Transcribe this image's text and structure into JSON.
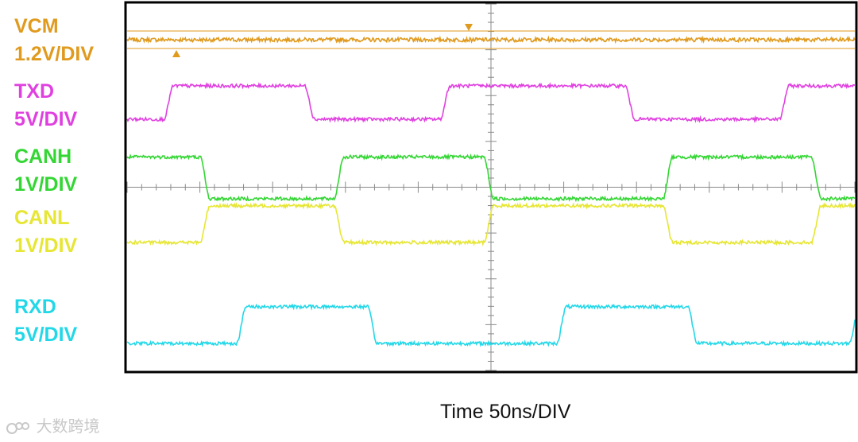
{
  "chart_data": {
    "type": "line",
    "title": "",
    "xlabel": "Time 50ns/DIV",
    "ylabel": "",
    "grid": true,
    "x_divisions": 10,
    "y_divisions": 8,
    "time_per_div_ns": 50,
    "duration_ns": 500,
    "series": [
      {
        "name": "VCM",
        "scale": "1.2V/DIV",
        "color": "#e09a1e",
        "levels_div": {
          "low": 0.0,
          "high": 0.0
        },
        "noise_div": 0.06,
        "edges": []
      },
      {
        "name": "TXD",
        "scale": "5V/DIV",
        "color": "#e040e0",
        "levels_div": {
          "low": 0.0,
          "high": 1.0
        },
        "edges": [
          {
            "t": 0,
            "to": "low"
          },
          {
            "t": 25,
            "to": "high"
          },
          {
            "t": 122,
            "to": "low"
          },
          {
            "t": 215,
            "to": "high"
          },
          {
            "t": 342,
            "to": "low"
          },
          {
            "t": 448,
            "to": "high"
          }
        ]
      },
      {
        "name": "CANH",
        "scale": "1V/DIV",
        "color": "#33d633",
        "levels_div": {
          "low": 0.0,
          "high": 1.25
        },
        "edges": [
          {
            "t": 0,
            "to": "high"
          },
          {
            "t": 50,
            "to": "low"
          },
          {
            "t": 142,
            "to": "high"
          },
          {
            "t": 245,
            "to": "low"
          },
          {
            "t": 368,
            "to": "high"
          },
          {
            "t": 470,
            "to": "low"
          }
        ]
      },
      {
        "name": "CANL",
        "scale": "1V/DIV",
        "color": "#e6e633",
        "levels_div": {
          "low": 0.0,
          "high": 1.1
        },
        "edges": [
          {
            "t": 0,
            "to": "low"
          },
          {
            "t": 50,
            "to": "high"
          },
          {
            "t": 142,
            "to": "low"
          },
          {
            "t": 245,
            "to": "high"
          },
          {
            "t": 368,
            "to": "low"
          },
          {
            "t": 470,
            "to": "high"
          }
        ]
      },
      {
        "name": "RXD",
        "scale": "5V/DIV",
        "color": "#22d8e8",
        "levels_div": {
          "low": 0.0,
          "high": 1.1
        },
        "edges": [
          {
            "t": 0,
            "to": "low"
          },
          {
            "t": 75,
            "to": "high"
          },
          {
            "t": 165,
            "to": "low"
          },
          {
            "t": 295,
            "to": "high"
          },
          {
            "t": 385,
            "to": "low"
          },
          {
            "t": 496,
            "to": "high"
          }
        ]
      }
    ]
  },
  "labels": {
    "vcm": {
      "name": "VCM",
      "scale": "1.2V/DIV",
      "color": "#e09a1e"
    },
    "txd": {
      "name": "TXD",
      "scale": "5V/DIV",
      "color": "#e040e0"
    },
    "canh": {
      "name": "CANH",
      "scale": "1V/DIV",
      "color": "#33d633"
    },
    "canl": {
      "name": "CANL",
      "scale": "1V/DIV",
      "color": "#e6e633"
    },
    "rxd": {
      "name": "RXD",
      "scale": "5V/DIV",
      "color": "#22d8e8"
    }
  },
  "timebase": "Time 50ns/DIV",
  "watermark": "大数跨境",
  "colors": {
    "frame": "#000000",
    "grid": "#999999",
    "background": "#ffffff"
  }
}
